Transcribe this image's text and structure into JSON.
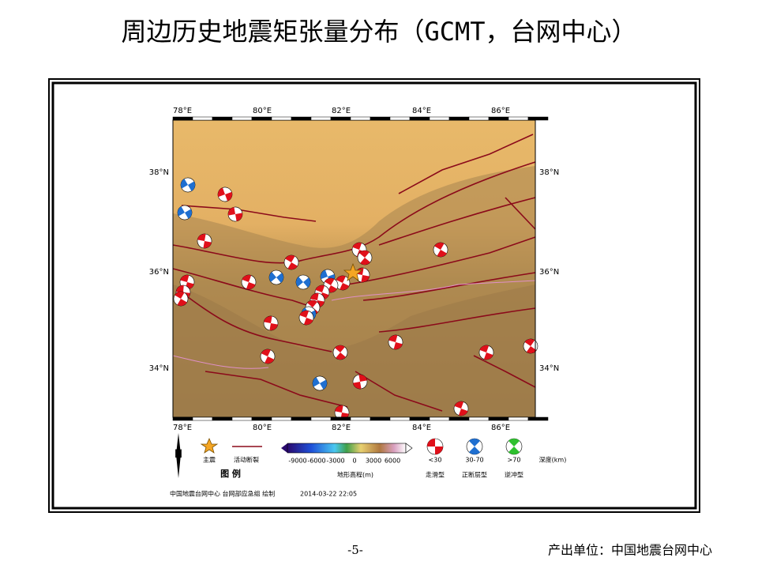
{
  "title": "周边历史地震矩张量分布（GCMT，台网中心）",
  "map": {
    "lon_labels": [
      "78°E",
      "80°E",
      "82°E",
      "84°E",
      "86°E"
    ],
    "lat_labels": [
      "38°N",
      "36°N",
      "34°N"
    ],
    "north": "N",
    "legend": {
      "title": "图  例",
      "mainshock": "主震",
      "fault": "活动断裂",
      "colorbar_ticks": [
        -9000,
        -6000,
        -3000,
        0,
        3000,
        6000
      ],
      "colorbar_label": "地形高程(m)",
      "depths": [
        "<30",
        "30-70",
        ">70"
      ],
      "depth_unit": "深度(km)",
      "mechanisms": [
        "走滑型",
        "正断层型",
        "逆冲型"
      ]
    },
    "credit": "中国地震台网中心 台网部应急组 绘制",
    "date": "2014-03-22 22:05"
  },
  "footer": {
    "page": "-5-",
    "producer": "产出单位：中国地震台网中心"
  }
}
